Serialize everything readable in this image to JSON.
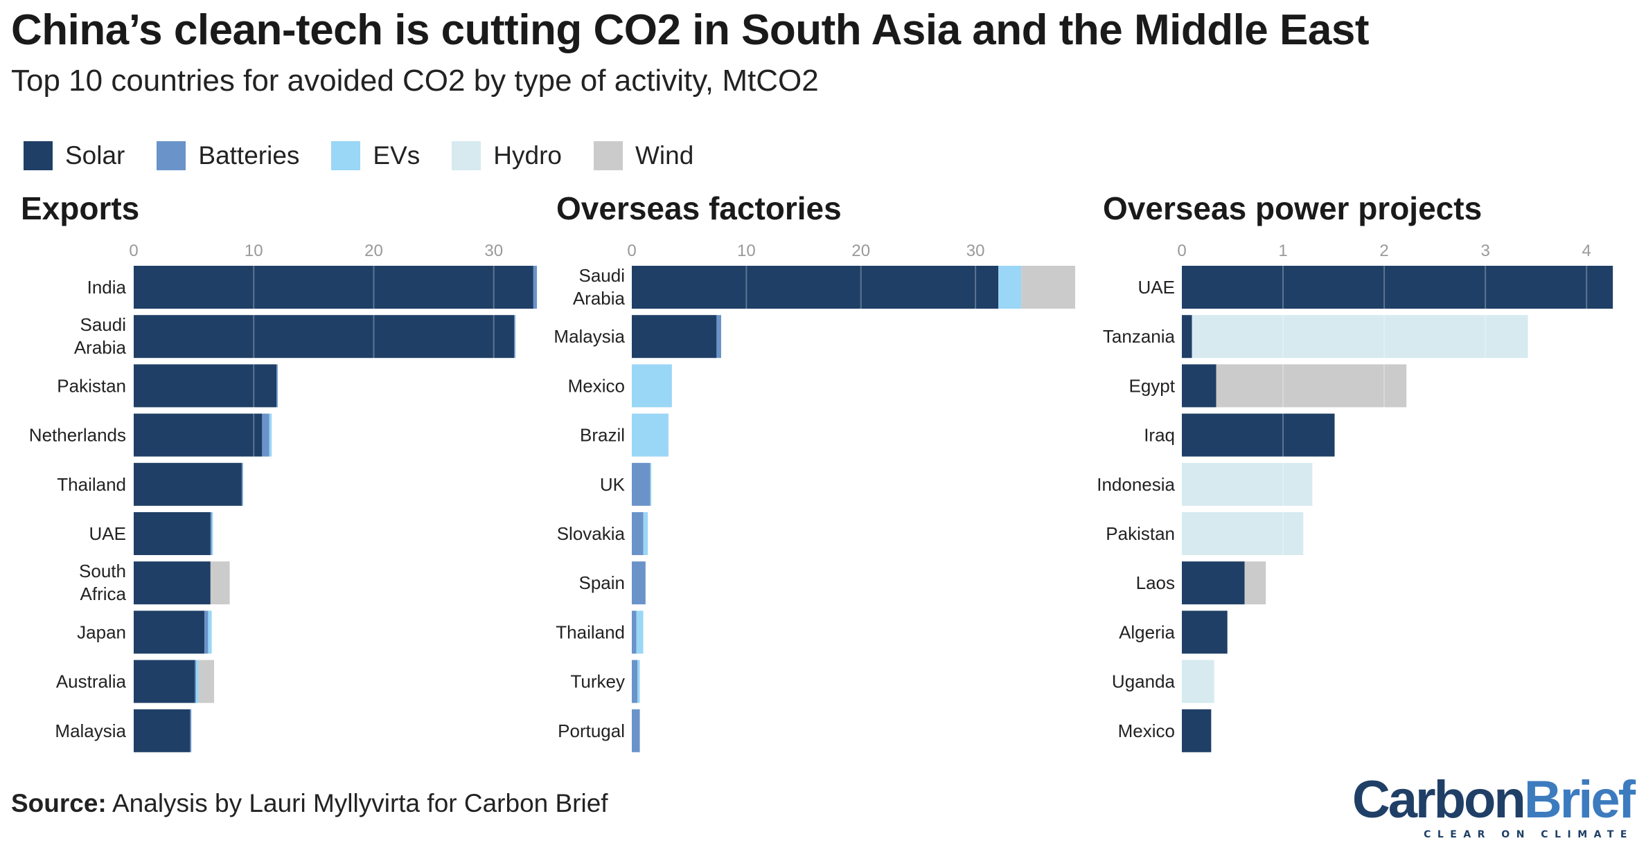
{
  "title": "China’s clean-tech is cutting CO2 in South Asia and the Middle East",
  "subtitle": "Top 10 countries for avoided CO2 by type of activity, MtCO2",
  "legend": [
    {
      "label": "Solar",
      "color": "#1f3f66"
    },
    {
      "label": "Batteries",
      "color": "#6a93c9"
    },
    {
      "label": "EVs",
      "color": "#9ad6f6"
    },
    {
      "label": "Hydro",
      "color": "#d6eaf0"
    },
    {
      "label": "Wind",
      "color": "#cbcbcb"
    }
  ],
  "source": {
    "prefix": "Source:",
    "text": " Analysis by Lauri Myllyvirta for Carbon Brief"
  },
  "logo": {
    "carbon": "Carbon",
    "brief": "Brief",
    "tagline": "CLEAR ON CLIMATE",
    "carbon_color": "#1f3f66",
    "brief_color": "#3d7bbf"
  },
  "chart_data": [
    {
      "type": "bar",
      "orientation": "horizontal",
      "stacked": true,
      "title": "Exports",
      "categories": [
        "India",
        "Saudi\nArabia",
        "Pakistan",
        "Netherlands",
        "Thailand",
        "UAE",
        "South\nAfrica",
        "Japan",
        "Australia",
        "Malaysia"
      ],
      "series": [
        {
          "name": "Solar",
          "values": [
            33.3,
            31.7,
            11.9,
            10.7,
            9.0,
            6.4,
            6.4,
            5.9,
            5.1,
            4.7
          ]
        },
        {
          "name": "Batteries",
          "values": [
            0.3,
            0.1,
            0.1,
            0.6,
            0.1,
            0.1,
            0.0,
            0.3,
            0.1,
            0.1
          ]
        },
        {
          "name": "EVs",
          "values": [
            0.0,
            0.0,
            0.0,
            0.2,
            0.0,
            0.1,
            0.0,
            0.3,
            0.2,
            0.0
          ]
        },
        {
          "name": "Hydro",
          "values": [
            0,
            0,
            0,
            0,
            0,
            0,
            0,
            0,
            0,
            0
          ]
        },
        {
          "name": "Wind",
          "values": [
            0.0,
            0.0,
            0.0,
            0.0,
            0.0,
            0.0,
            1.6,
            0.0,
            1.3,
            0.0
          ]
        }
      ],
      "xticks": [
        0,
        10,
        20,
        30
      ],
      "xlim": [
        0,
        34
      ],
      "grid": true
    },
    {
      "type": "bar",
      "orientation": "horizontal",
      "stacked": true,
      "title": "Overseas factories",
      "categories": [
        "Saudi\nArabia",
        "Malaysia",
        "Mexico",
        "Brazil",
        "UK",
        "Slovakia",
        "Spain",
        "Thailand",
        "Turkey",
        "Portugal"
      ],
      "series": [
        {
          "name": "Solar",
          "values": [
            32.0,
            7.4,
            0.0,
            0.0,
            0.0,
            0.0,
            0.0,
            0.0,
            0.0,
            0.0
          ]
        },
        {
          "name": "Batteries",
          "values": [
            0.0,
            0.4,
            0.0,
            0.0,
            1.6,
            1.0,
            1.2,
            0.4,
            0.5,
            0.7
          ]
        },
        {
          "name": "EVs",
          "values": [
            2.0,
            0.0,
            3.5,
            3.2,
            0.1,
            0.4,
            0.0,
            0.6,
            0.2,
            0.0
          ]
        },
        {
          "name": "Hydro",
          "values": [
            0,
            0,
            0,
            0,
            0,
            0,
            0,
            0,
            0,
            0
          ]
        },
        {
          "name": "Wind",
          "values": [
            4.7,
            0.0,
            0.0,
            0.0,
            0.0,
            0.0,
            0.0,
            0.0,
            0.0,
            0.0
          ]
        }
      ],
      "xticks": [
        0,
        10,
        20,
        30
      ],
      "xlim": [
        0,
        38.7
      ],
      "grid": true
    },
    {
      "type": "bar",
      "orientation": "horizontal",
      "stacked": true,
      "title": "Overseas power projects",
      "categories": [
        "UAE",
        "Tanzania",
        "Egypt",
        "Iraq",
        "Indonesia",
        "Pakistan",
        "Laos",
        "Algeria",
        "Uganda",
        "Mexico"
      ],
      "series": [
        {
          "name": "Solar",
          "values": [
            4.26,
            0.1,
            0.34,
            1.51,
            0.0,
            0.0,
            0.62,
            0.45,
            0.0,
            0.29
          ]
        },
        {
          "name": "Batteries",
          "values": [
            0,
            0,
            0,
            0,
            0,
            0,
            0,
            0,
            0,
            0
          ]
        },
        {
          "name": "EVs",
          "values": [
            0,
            0,
            0,
            0,
            0,
            0,
            0,
            0,
            0,
            0
          ]
        },
        {
          "name": "Hydro",
          "values": [
            0.0,
            3.32,
            0.0,
            0.0,
            1.29,
            1.2,
            0.0,
            0.0,
            0.32,
            0.0
          ]
        },
        {
          "name": "Wind",
          "values": [
            0.0,
            0.0,
            1.88,
            0.0,
            0.0,
            0.0,
            0.21,
            0.0,
            0.0,
            0.0
          ]
        }
      ],
      "xticks": [
        0,
        1,
        2,
        3,
        4
      ],
      "xlim": [
        0,
        4.3
      ],
      "grid": true
    }
  ]
}
